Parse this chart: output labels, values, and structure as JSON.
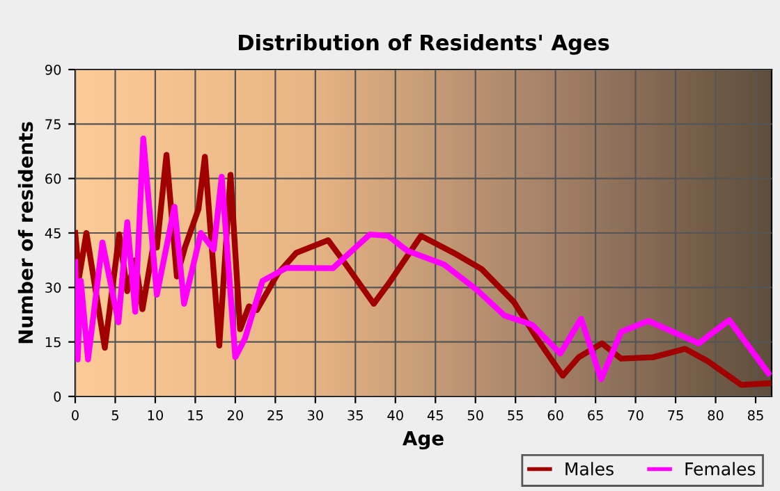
{
  "chart_data": {
    "type": "line",
    "title": "Distribution of Residents' Ages",
    "xlabel": "Age",
    "ylabel": "Number of residents",
    "xlim": [
      0,
      87
    ],
    "xticks": [
      0,
      5,
      10,
      15,
      20,
      25,
      30,
      35,
      40,
      45,
      50,
      55,
      60,
      65,
      70,
      75,
      80,
      85
    ],
    "ylim": [
      0,
      90
    ],
    "yticks": [
      0,
      15,
      30,
      45,
      60,
      75,
      90
    ],
    "grid": true,
    "legend": "bottom right",
    "marker": "none",
    "line_style": "solid",
    "series": [
      {
        "name": "Males",
        "color": "#a00000",
        "x": [
          0,
          0.5,
          1.4,
          3.7,
          5.5,
          6.5,
          7.5,
          8.4,
          9.7,
          10.2,
          11.4,
          12.7,
          13.7,
          15.4,
          16.2,
          18,
          19.4,
          20.6,
          21.7,
          22.7,
          25.3,
          27.6,
          31.6,
          33.4,
          37.3,
          39.2,
          43.2,
          47.3,
          50.8,
          54.8,
          57.7,
          60.9,
          62.9,
          65.8,
          68.2,
          72.2,
          76.2,
          79.1,
          83.2,
          86.6
        ],
        "values": [
          45,
          33,
          45,
          13.4,
          44.6,
          29,
          37.5,
          24,
          40.8,
          41,
          66.5,
          33,
          41,
          51.6,
          66,
          14,
          61,
          18.5,
          24.8,
          23.8,
          33.8,
          39.5,
          43,
          37.6,
          25.5,
          31.2,
          44.2,
          39.5,
          35,
          26,
          15.9,
          5.7,
          10.8,
          14.6,
          10.4,
          10.8,
          13.1,
          9.6,
          3.2,
          3.6
        ]
      },
      {
        "name": "Females",
        "color": "#ff00ff",
        "x": [
          0,
          0.3,
          0.7,
          1.6,
          3.4,
          5.4,
          6.5,
          7.5,
          8.5,
          10.2,
          12.4,
          13.6,
          15.7,
          17.3,
          18.3,
          20,
          21.2,
          23.4,
          26.4,
          32.2,
          36.8,
          39.1,
          41.5,
          46.1,
          50.2,
          53.6,
          57.1,
          60.6,
          63.2,
          65.7,
          68.2,
          71.6,
          77.9,
          81.7,
          86.6
        ],
        "values": [
          37,
          10.2,
          31.8,
          10.2,
          42.4,
          20.4,
          48,
          23.3,
          71,
          28,
          52.2,
          25.5,
          45,
          40.4,
          60.5,
          10.8,
          15.9,
          31.8,
          35.4,
          35.3,
          44.6,
          44.2,
          40.1,
          36.3,
          29.3,
          22.3,
          19.7,
          11.8,
          21.4,
          4.7,
          17.8,
          20.8,
          14.6,
          21,
          6.4
        ]
      }
    ]
  }
}
